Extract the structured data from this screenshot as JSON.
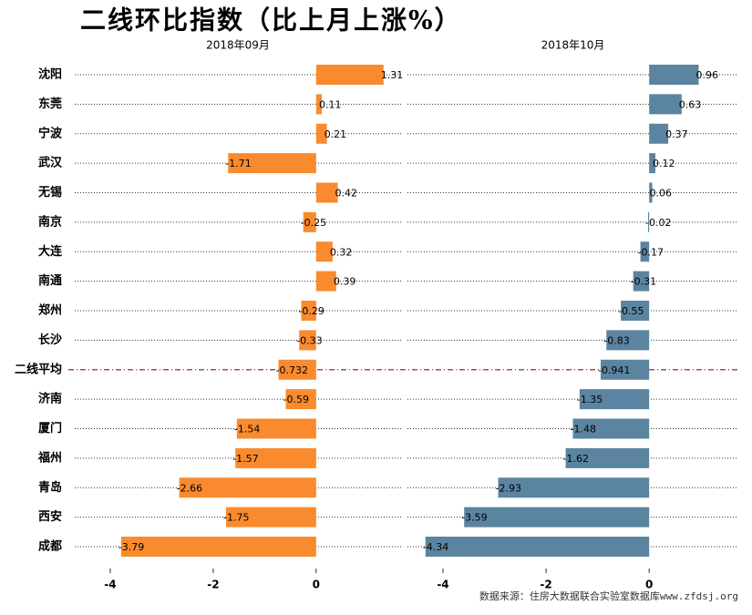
{
  "chart_data": {
    "type": "bar",
    "orientation": "horizontal",
    "title": "二线环比指数（比上月上涨%）",
    "source": "数据来源：住房大数据联合实验室数据库www.zfdsj.org",
    "categories": [
      "沈阳",
      "东莞",
      "宁波",
      "武汉",
      "无锡",
      "南京",
      "大连",
      "南通",
      "郑州",
      "长沙",
      "二线平均",
      "济南",
      "厦门",
      "福州",
      "青岛",
      "西安",
      "成都"
    ],
    "highlight_category": 10,
    "highlight_color": "#b22222",
    "series": [
      {
        "name": "2018年09月",
        "color": "#f98b2e",
        "values": [
          1.31,
          0.11,
          0.21,
          -1.71,
          0.42,
          -0.25,
          0.32,
          0.39,
          -0.29,
          -0.33,
          -0.732,
          -0.59,
          -1.54,
          -1.57,
          -2.66,
          -1.75,
          -3.79
        ],
        "xlim": [
          -4.69,
          1.65
        ],
        "xticks": [
          -4,
          -2,
          0
        ]
      },
      {
        "name": "2018年10月",
        "color": "#5b84a0",
        "values": [
          0.96,
          0.63,
          0.37,
          0.12,
          0.06,
          -0.02,
          -0.17,
          -0.31,
          -0.55,
          -0.83,
          -0.941,
          -1.35,
          -1.48,
          -1.62,
          -2.93,
          -3.59,
          -4.34
        ],
        "xlim": [
          -4.69,
          1.73
        ],
        "xticks": [
          -4,
          -2,
          0
        ]
      }
    ]
  }
}
